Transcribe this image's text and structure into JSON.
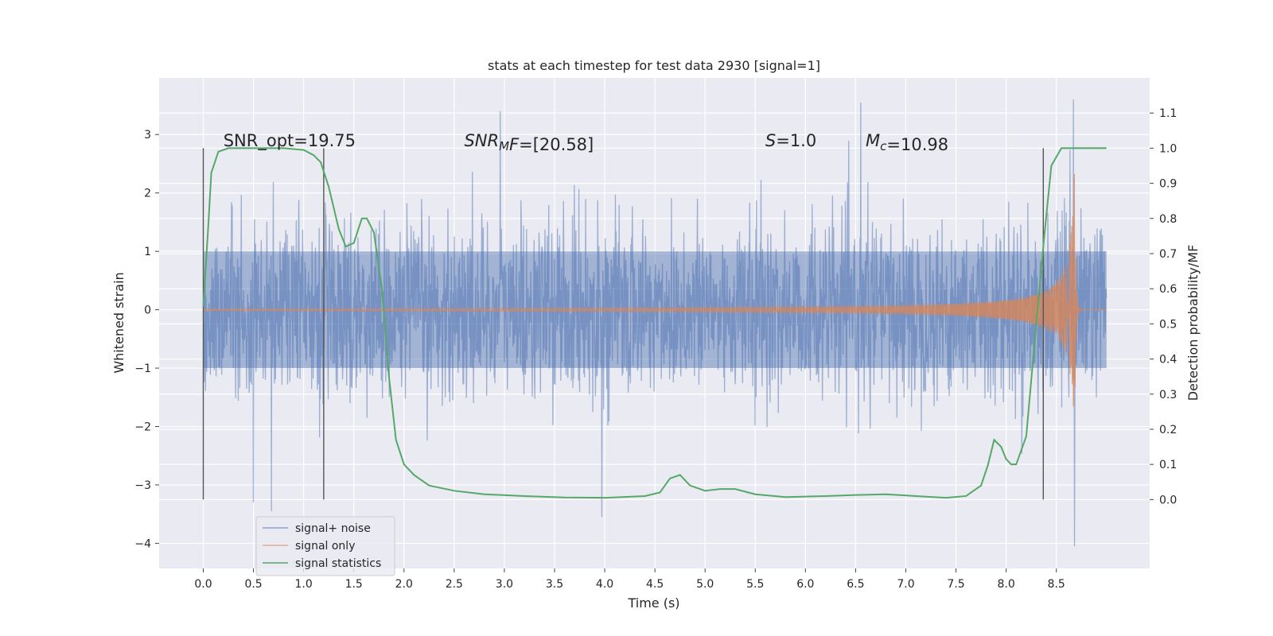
{
  "chart_data": {
    "type": "line",
    "title": "stats at each timestep for test data 2930 [signal=1]",
    "xlabel": "Time (s)",
    "ylabel": "Whitened strain",
    "ylabel_right": "Detection probability/MF",
    "xlim": [
      -0.44,
      9.43
    ],
    "ylim": [
      -4.43,
      3.97
    ],
    "ylim_right": [
      -0.196,
      1.2
    ],
    "x_ticks": [
      "0.0",
      "0.5",
      "1.0",
      "1.5",
      "2.0",
      "2.5",
      "3.0",
      "3.5",
      "4.0",
      "4.5",
      "5.0",
      "5.5",
      "6.0",
      "6.5",
      "7.0",
      "7.5",
      "8.0",
      "8.5"
    ],
    "y_ticks": [
      "3",
      "2",
      "1",
      "0",
      "−1",
      "−2",
      "−3",
      "−4"
    ],
    "y_right_ticks": [
      "1.1",
      "1.0",
      "0.9",
      "0.8",
      "0.7",
      "0.6",
      "0.5",
      "0.4",
      "0.3",
      "0.2",
      "0.1",
      "0.0"
    ],
    "grid": true,
    "legend_position": "lower-left",
    "annotations": [
      {
        "text": "SNR_opt=19.75",
        "x": 0.2,
        "y": 2.8
      },
      {
        "text": "SNRMF=[20.58]",
        "x": 2.6,
        "y": 2.8
      },
      {
        "text": "S=1.0",
        "x": 5.6,
        "y": 2.8
      },
      {
        "text": "Mc=10.98",
        "x": 6.6,
        "y": 2.8
      }
    ],
    "vertical_lines": [
      0.0,
      1.2,
      8.37
    ],
    "series": [
      {
        "name": "signal+ noise",
        "color": "#4c72b0",
        "x_range": [
          0.0,
          9.0
        ],
        "noise_band": [
          -1.0,
          1.0
        ],
        "extreme_points": [
          {
            "x": 0.5,
            "y": -3.3
          },
          {
            "x": 0.68,
            "y": -3.45
          },
          {
            "x": 2.96,
            "y": 3.4
          },
          {
            "x": 3.97,
            "y": -3.55
          },
          {
            "x": 6.55,
            "y": 3.55
          },
          {
            "x": 8.67,
            "y": 3.6
          },
          {
            "x": 8.68,
            "y": -4.05
          }
        ]
      },
      {
        "name": "signal only",
        "color": "#dd8452",
        "type": "chirp",
        "x_range": [
          0.0,
          9.0
        ],
        "merger_time": 8.68,
        "peak_amplitude": 2.5
      },
      {
        "name": "signal statistics",
        "color": "#55a868",
        "axis": "right",
        "points": [
          [
            0.0,
            0.55
          ],
          [
            0.05,
            0.78
          ],
          [
            0.08,
            0.93
          ],
          [
            0.15,
            0.99
          ],
          [
            0.25,
            1.0
          ],
          [
            0.5,
            1.0
          ],
          [
            0.8,
            1.0
          ],
          [
            1.0,
            0.995
          ],
          [
            1.1,
            0.98
          ],
          [
            1.17,
            0.96
          ],
          [
            1.25,
            0.89
          ],
          [
            1.35,
            0.77
          ],
          [
            1.42,
            0.72
          ],
          [
            1.5,
            0.73
          ],
          [
            1.58,
            0.8
          ],
          [
            1.63,
            0.8
          ],
          [
            1.7,
            0.76
          ],
          [
            1.78,
            0.6
          ],
          [
            1.85,
            0.35
          ],
          [
            1.92,
            0.17
          ],
          [
            2.0,
            0.1
          ],
          [
            2.1,
            0.07
          ],
          [
            2.25,
            0.04
          ],
          [
            2.5,
            0.025
          ],
          [
            2.8,
            0.015
          ],
          [
            3.2,
            0.01
          ],
          [
            3.6,
            0.006
          ],
          [
            4.0,
            0.005
          ],
          [
            4.4,
            0.01
          ],
          [
            4.55,
            0.02
          ],
          [
            4.65,
            0.06
          ],
          [
            4.75,
            0.07
          ],
          [
            4.85,
            0.04
          ],
          [
            5.0,
            0.025
          ],
          [
            5.15,
            0.03
          ],
          [
            5.3,
            0.03
          ],
          [
            5.5,
            0.015
          ],
          [
            5.8,
            0.007
          ],
          [
            6.2,
            0.01
          ],
          [
            6.5,
            0.013
          ],
          [
            6.8,
            0.015
          ],
          [
            7.1,
            0.01
          ],
          [
            7.4,
            0.005
          ],
          [
            7.6,
            0.01
          ],
          [
            7.75,
            0.04
          ],
          [
            7.82,
            0.1
          ],
          [
            7.88,
            0.17
          ],
          [
            7.95,
            0.15
          ],
          [
            8.0,
            0.115
          ],
          [
            8.05,
            0.1
          ],
          [
            8.1,
            0.1
          ],
          [
            8.2,
            0.18
          ],
          [
            8.3,
            0.5
          ],
          [
            8.38,
            0.75
          ],
          [
            8.45,
            0.95
          ],
          [
            8.55,
            1.0
          ],
          [
            9.0,
            1.0
          ]
        ]
      }
    ]
  }
}
